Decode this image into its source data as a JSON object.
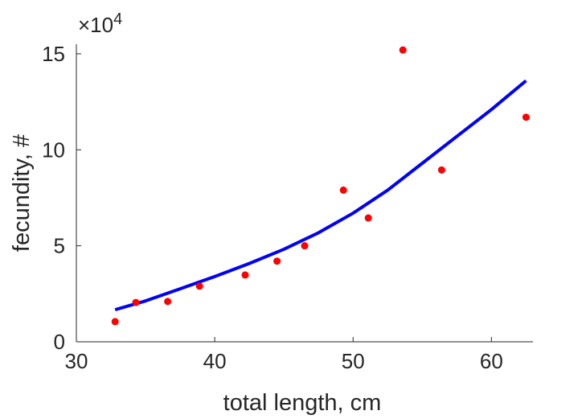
{
  "chart_data": {
    "type": "scatter",
    "title": "",
    "xlabel": "total length, cm",
    "ylabel": "fecundity, #",
    "xlim": [
      30,
      63
    ],
    "ylim": [
      0,
      155000
    ],
    "x_ticks": [
      30,
      40,
      50,
      60
    ],
    "x_tick_labels": [
      "30",
      "40",
      "50",
      "60"
    ],
    "y_ticks": [
      0,
      50000,
      100000,
      150000
    ],
    "y_tick_labels": [
      "0",
      "5",
      "10",
      "15"
    ],
    "y_exponent_label": {
      "base": "×10",
      "exponent": "4"
    },
    "grid": false,
    "legend": "none",
    "series": [
      {
        "type": "scatter",
        "color": "#ff0000",
        "x": [
          32.8,
          34.3,
          36.6,
          38.9,
          42.2,
          44.5,
          46.5,
          49.3,
          51.1,
          53.6,
          56.4,
          62.5
        ],
        "y": [
          10500,
          20500,
          21000,
          29000,
          34800,
          42000,
          50000,
          79000,
          64500,
          152000,
          89500,
          117000
        ]
      },
      {
        "type": "line",
        "color": "#0000ff",
        "fit": "exponential",
        "x": [
          32.8,
          35.0,
          37.5,
          40.0,
          42.5,
          45.0,
          47.5,
          50.0,
          52.5,
          55.0,
          57.5,
          60.0,
          62.5
        ],
        "y": [
          16700,
          21300,
          27600,
          34000,
          40800,
          48200,
          56800,
          67000,
          79000,
          93000,
          107000,
          121000,
          136000
        ]
      }
    ]
  },
  "icons": {
    "scatter_marker": "filled-circle",
    "fit_line": "solid-line"
  }
}
